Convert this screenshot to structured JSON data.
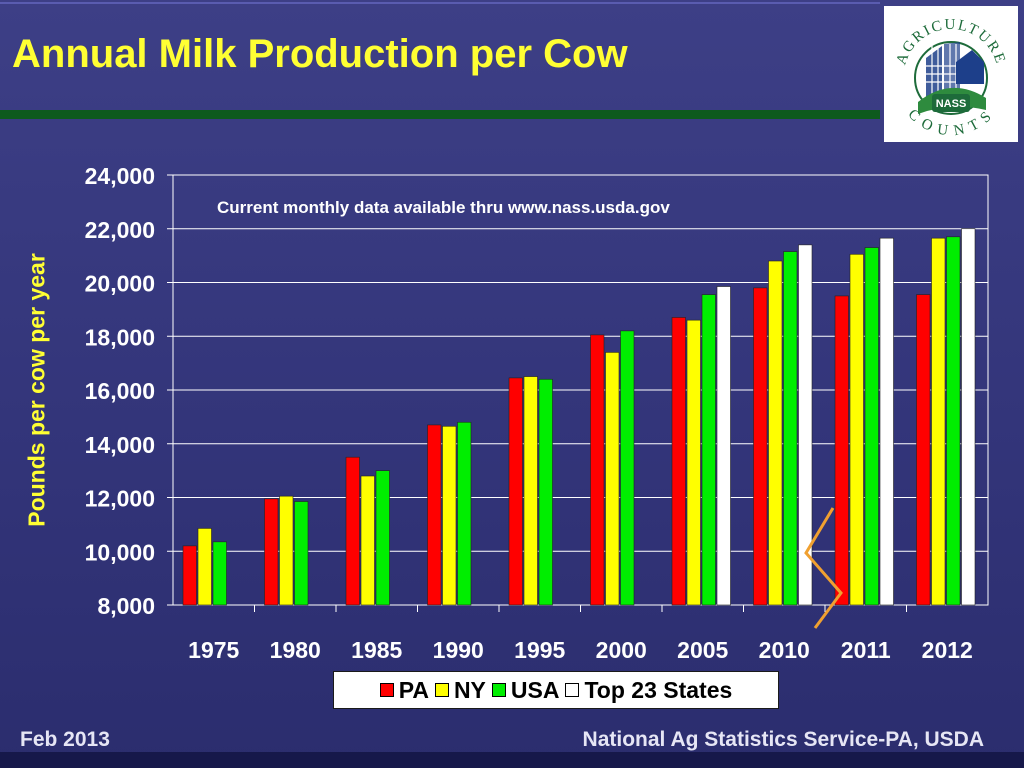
{
  "slide": {
    "title": "Annual Milk Production per Cow",
    "footer_left": "Feb 2013",
    "footer_right": "National Ag Statistics Service-PA, USDA"
  },
  "logo": {
    "arc_top": "AGRICULTURE",
    "arc_bottom": "COUNTS",
    "center": "NASS"
  },
  "colors": {
    "title": "#ffff33",
    "background": "#3d3f86",
    "band": "#0d5a1e",
    "PA": "#ff0000",
    "NY": "#ffff00",
    "USA": "#00ee00",
    "Top 23 States": "#ffffff"
  },
  "chart_data": {
    "type": "bar",
    "title": "Annual Milk Production per Cow",
    "ylabel": "Pounds per cow per year",
    "xlabel": "",
    "ylim": [
      8000,
      24000
    ],
    "yticks": [
      8000,
      10000,
      12000,
      14000,
      16000,
      18000,
      20000,
      22000,
      24000
    ],
    "ytick_labels": [
      "8,000",
      "10,000",
      "12,000",
      "14,000",
      "16,000",
      "18,000",
      "20,000",
      "22,000",
      "24,000"
    ],
    "grid": true,
    "legend_position": "bottom",
    "axis_break": "between 2010 and 2011",
    "annotation": "Current monthly data available thru www.nass.usda.gov",
    "categories": [
      "1975",
      "1980",
      "1985",
      "1990",
      "1995",
      "2000",
      "2005",
      "2010",
      "2011",
      "2012"
    ],
    "series": [
      {
        "name": "PA",
        "values": [
          10200,
          11950,
          13500,
          14700,
          16450,
          18050,
          18700,
          19800,
          19500,
          19550
        ]
      },
      {
        "name": "NY",
        "values": [
          10850,
          12050,
          12800,
          14650,
          16500,
          17400,
          18600,
          20800,
          21050,
          21650
        ]
      },
      {
        "name": "USA",
        "values": [
          10350,
          11850,
          13000,
          14800,
          16400,
          18200,
          19550,
          21150,
          21300,
          21700
        ]
      },
      {
        "name": "Top 23 States",
        "values": [
          null,
          null,
          null,
          null,
          null,
          null,
          19850,
          21400,
          21650,
          22000
        ]
      }
    ]
  }
}
